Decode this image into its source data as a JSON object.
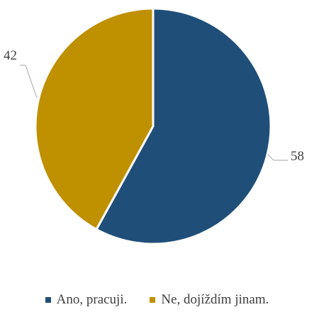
{
  "chart_data": {
    "type": "pie",
    "categories": [
      "Ano, pracuji.",
      "Ne, dojíždím jinam."
    ],
    "values": [
      58,
      42
    ],
    "data_labels": [
      "58",
      "42"
    ],
    "colors": [
      "#1f4e79",
      "#bf9000"
    ],
    "legend_position": "bottom",
    "start_angle_deg": 0,
    "direction": "clockwise"
  }
}
